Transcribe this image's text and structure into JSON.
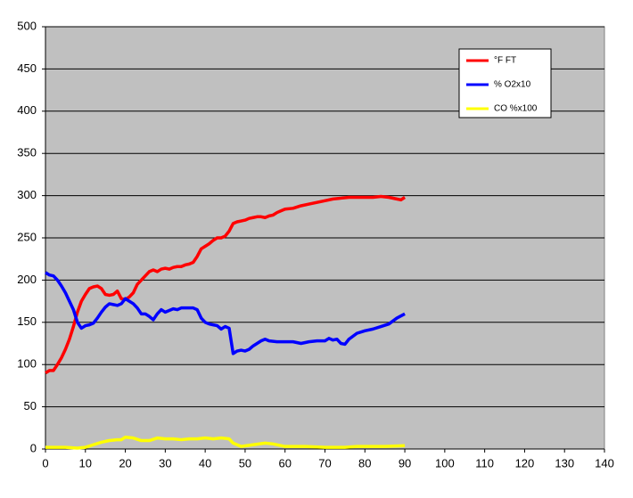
{
  "chart_data": {
    "type": "line",
    "xlim": [
      0,
      140
    ],
    "xticks": [
      0,
      10,
      20,
      30,
      40,
      50,
      60,
      70,
      80,
      90,
      100,
      110,
      120,
      130,
      140
    ],
    "ylim": [
      0,
      500
    ],
    "yticks": [
      0,
      50,
      100,
      150,
      200,
      250,
      300,
      350,
      400,
      450,
      500
    ],
    "grid": true,
    "legend": "upper-right",
    "series": [
      {
        "name": "°F FT",
        "color": "#ff0000",
        "x": [
          0,
          1,
          2,
          3,
          4,
          5,
          6,
          7,
          8,
          9,
          10,
          11,
          12,
          13,
          14,
          15,
          16,
          17,
          18,
          19,
          20,
          21,
          22,
          23,
          24,
          25,
          26,
          27,
          28,
          29,
          30,
          31,
          32,
          33,
          34,
          35,
          36,
          37,
          38,
          39,
          40,
          41,
          42,
          43,
          44,
          45,
          46,
          47,
          48,
          49,
          50,
          51,
          52,
          53,
          54,
          55,
          56,
          57,
          58,
          59,
          60,
          62,
          64,
          66,
          68,
          70,
          72,
          74,
          76,
          78,
          80,
          82,
          84,
          86,
          88,
          89,
          90
        ],
        "values": [
          90,
          93,
          93,
          100,
          108,
          118,
          130,
          145,
          162,
          175,
          183,
          190,
          192,
          193,
          190,
          183,
          182,
          183,
          187,
          178,
          177,
          180,
          185,
          195,
          200,
          205,
          210,
          212,
          210,
          213,
          214,
          213,
          215,
          216,
          216,
          218,
          219,
          221,
          228,
          237,
          240,
          243,
          247,
          250,
          250,
          252,
          258,
          267,
          269,
          270,
          271,
          273,
          274,
          275,
          275,
          274,
          276,
          277,
          280,
          282,
          284,
          285,
          288,
          290,
          292,
          294,
          296,
          297,
          298,
          298,
          298,
          298,
          299,
          298,
          296,
          295,
          298
        ]
      },
      {
        "name": "% O2x10",
        "color": "#0000ff",
        "x": [
          0,
          1,
          2,
          3,
          4,
          5,
          6,
          7,
          8,
          9,
          10,
          11,
          12,
          13,
          14,
          15,
          16,
          17,
          18,
          19,
          20,
          21,
          22,
          23,
          24,
          25,
          26,
          27,
          28,
          29,
          30,
          31,
          32,
          33,
          34,
          35,
          36,
          37,
          38,
          39,
          40,
          41,
          42,
          43,
          44,
          45,
          46,
          47,
          48,
          49,
          50,
          51,
          52,
          53,
          54,
          55,
          56,
          58,
          60,
          62,
          64,
          66,
          68,
          70,
          71,
          72,
          73,
          74,
          75,
          76,
          78,
          80,
          82,
          84,
          86,
          88,
          90
        ],
        "values": [
          209,
          206,
          205,
          200,
          193,
          185,
          175,
          165,
          150,
          143,
          146,
          147,
          149,
          155,
          162,
          168,
          172,
          171,
          170,
          172,
          178,
          175,
          172,
          167,
          160,
          160,
          157,
          153,
          160,
          165,
          162,
          164,
          166,
          165,
          167,
          167,
          167,
          167,
          165,
          155,
          150,
          148,
          147,
          146,
          142,
          145,
          143,
          113,
          116,
          117,
          116,
          118,
          122,
          125,
          128,
          130,
          128,
          127,
          127,
          127,
          125,
          127,
          128,
          128,
          131,
          129,
          130,
          125,
          124,
          130,
          137,
          140,
          142,
          145,
          148,
          155,
          160
        ]
      },
      {
        "name": "CO %x100",
        "color": "#ffff00",
        "x": [
          0,
          5,
          8,
          10,
          12,
          14,
          16,
          18,
          19,
          20,
          22,
          24,
          26,
          28,
          30,
          32,
          34,
          36,
          38,
          40,
          42,
          44,
          46,
          47,
          49,
          52,
          55,
          57,
          60,
          65,
          70,
          75,
          78,
          85,
          90
        ],
        "values": [
          2,
          2,
          1,
          2,
          5,
          8,
          10,
          11,
          11,
          14,
          13,
          10,
          10,
          13,
          12,
          12,
          11,
          12,
          12,
          13,
          12,
          13,
          12,
          7,
          3,
          5,
          7,
          6,
          3,
          3,
          2,
          2,
          3,
          3,
          4
        ]
      }
    ]
  }
}
